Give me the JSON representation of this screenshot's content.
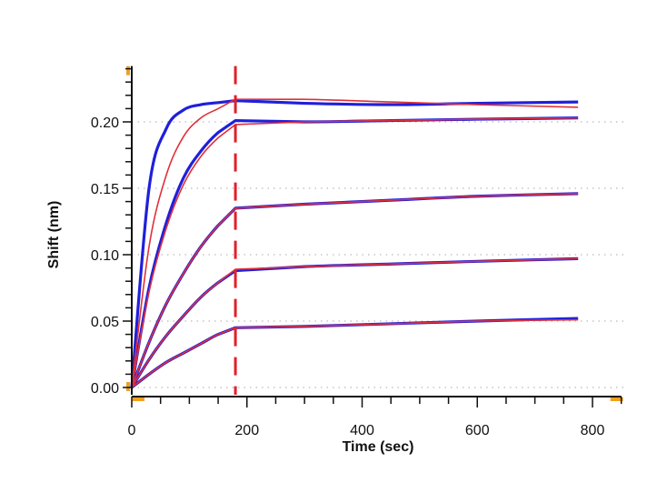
{
  "chart_data": {
    "type": "line",
    "title": "",
    "xlabel": "Time (sec)",
    "ylabel": "Shift (nm)",
    "xlim": [
      0,
      850
    ],
    "ylim": [
      -0.005,
      0.242
    ],
    "xticks": [
      0,
      200,
      400,
      600,
      800
    ],
    "xtick_labels": [
      "0",
      "200",
      "400",
      "600",
      "800"
    ],
    "yticks": [
      0.0,
      0.05,
      0.1,
      0.15,
      0.2
    ],
    "ytick_labels": [
      "0.00",
      "0.05",
      "0.10",
      "0.15",
      "0.20"
    ],
    "grid": "horizontal dotted at major y ticks",
    "legend": "none",
    "vertical_marker": {
      "x": 180,
      "style": "dashed",
      "color": "#e0202a"
    },
    "colors": {
      "measured": "#1f1fdc",
      "fit": "#e0303a",
      "axis": "#111111",
      "marker": "#f0a020"
    },
    "x": [
      0,
      30,
      60,
      90,
      120,
      150,
      180,
      300,
      450,
      600,
      775
    ],
    "series": [
      {
        "kind": "measured",
        "values": [
          0,
          0.15,
          0.195,
          0.209,
          0.213,
          0.2145,
          0.216,
          0.214,
          0.213,
          0.214,
          0.215
        ]
      },
      {
        "kind": "fit",
        "values": [
          0,
          0.106,
          0.16,
          0.189,
          0.203,
          0.21,
          0.217,
          0.217,
          0.215,
          0.213,
          0.211
        ]
      },
      {
        "kind": "measured",
        "values": [
          0,
          0.075,
          0.124,
          0.158,
          0.178,
          0.192,
          0.201,
          0.2,
          0.201,
          0.202,
          0.203
        ]
      },
      {
        "kind": "fit",
        "values": [
          0,
          0.072,
          0.12,
          0.153,
          0.174,
          0.188,
          0.198,
          0.2,
          0.201,
          0.202,
          0.203
        ]
      },
      {
        "kind": "measured",
        "values": [
          0,
          0.034,
          0.063,
          0.086,
          0.106,
          0.122,
          0.135,
          0.138,
          0.141,
          0.144,
          0.146
        ]
      },
      {
        "kind": "fit",
        "values": [
          0,
          0.034,
          0.063,
          0.086,
          0.106,
          0.122,
          0.135,
          0.138,
          0.141,
          0.144,
          0.146
        ]
      },
      {
        "kind": "measured",
        "values": [
          0,
          0.021,
          0.039,
          0.054,
          0.068,
          0.079,
          0.088,
          0.091,
          0.093,
          0.095,
          0.097
        ]
      },
      {
        "kind": "fit",
        "values": [
          0,
          0.021,
          0.039,
          0.054,
          0.068,
          0.079,
          0.089,
          0.091,
          0.093,
          0.095,
          0.097
        ]
      },
      {
        "kind": "measured",
        "values": [
          0,
          0.01,
          0.019,
          0.026,
          0.033,
          0.04,
          0.045,
          0.046,
          0.048,
          0.05,
          0.052
        ]
      },
      {
        "kind": "fit",
        "values": [
          0,
          0.01,
          0.019,
          0.026,
          0.033,
          0.04,
          0.045,
          0.046,
          0.048,
          0.05,
          0.051
        ]
      }
    ]
  }
}
